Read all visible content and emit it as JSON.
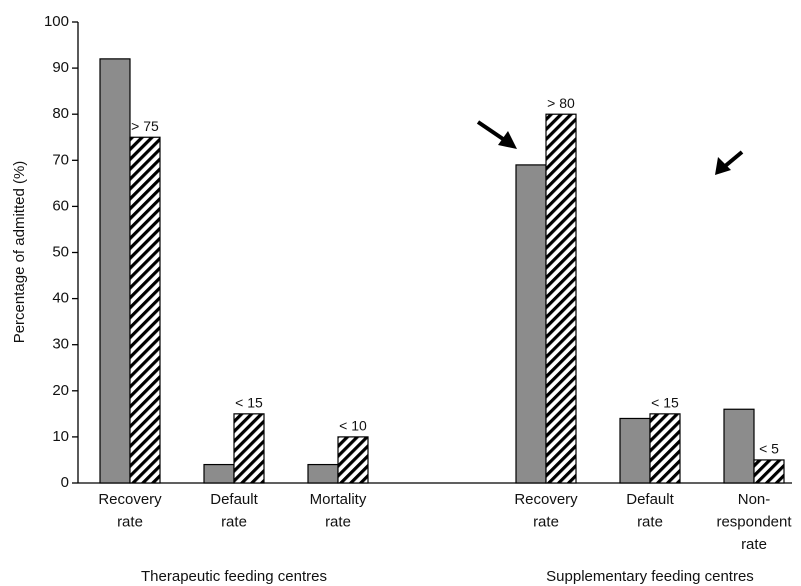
{
  "chart_data": {
    "type": "bar",
    "y_label": "Percentage of admitted (%)",
    "categories": [
      [
        "Recovery",
        "rate"
      ],
      [
        "Default",
        "rate"
      ],
      [
        "Mortality",
        "rate"
      ],
      null,
      [
        "Recovery",
        "rate"
      ],
      [
        "Default",
        "rate"
      ],
      [
        "Non-",
        "respondent",
        "rate"
      ]
    ],
    "groups": [
      {
        "label": "Therapeutic feeding centres",
        "categories": [
          0,
          2
        ]
      },
      {
        "label": "Supplementary feeding centres",
        "categories": [
          4,
          6
        ]
      }
    ],
    "series": [
      {
        "color": "#8c8c8c",
        "values": [
          92,
          4,
          4,
          null,
          69,
          14,
          16
        ]
      },
      {
        "color": "hatch",
        "values": [
          75,
          15,
          10,
          null,
          80,
          15,
          5
        ],
        "value_labels": [
          "> 75",
          "< 15",
          "< 10",
          null,
          "> 80",
          "< 15",
          "< 5"
        ]
      }
    ],
    "ylim": [
      0,
      100
    ],
    "yticks": [
      0,
      10,
      20,
      30,
      40,
      50,
      60,
      70,
      80,
      90,
      100
    ],
    "grid": false
  }
}
